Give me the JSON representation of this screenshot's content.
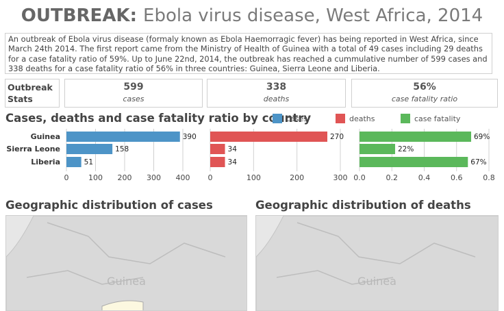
{
  "header": {
    "title_bold": "OUTBREAK:",
    "title_rest": "Ebola virus disease, West Africa, 2014"
  },
  "intro": "An outbreak of Ebola virus disease (formaly known as Ebola Haemorragic fever) has being reported in West Africa, since March 24th 2014. The first report came from the Ministry of Health of Guinea with a total of 49 cases including 29 deaths for a case fatality ratio of 59%. Up to June 22nd, 2014, the outbreak has reached a cummulative number of 599 cases and 338 deaths for a case fatality ratio of 56% in three countries: Guinea, Sierra Leone and Liberia.",
  "stats": {
    "label": "Outbreak Stats",
    "cases_value": "599",
    "cases_label": "cases",
    "deaths_value": "338",
    "deaths_label": "deaths",
    "cfr_value": "56%",
    "cfr_label": "case fatality ratio"
  },
  "chart_section_title": "Cases, deaths and case fatality ratio by country",
  "chart_data": {
    "type": "bar",
    "orientation": "horizontal",
    "categories": [
      "Guinea",
      "Sierra Leone",
      "Liberia"
    ],
    "legend_position": "top-right",
    "grid": true,
    "series": [
      {
        "name": "cases",
        "values": [
          390,
          158,
          51
        ],
        "value_labels": [
          "390",
          "158",
          "51"
        ],
        "color": "#4d94c7",
        "xlim": [
          0,
          400
        ],
        "ticks": [
          0,
          100,
          200,
          300,
          400
        ]
      },
      {
        "name": "deaths",
        "values": [
          270,
          34,
          34
        ],
        "value_labels": [
          "270",
          "34",
          "34"
        ],
        "color": "#e05555",
        "xlim": [
          0,
          300
        ],
        "ticks": [
          0,
          100,
          200,
          300
        ]
      },
      {
        "name": "case fatality",
        "values": [
          0.69,
          0.22,
          0.67
        ],
        "value_labels": [
          "69%",
          "22%",
          "67%"
        ],
        "color": "#5bb85b",
        "xlim": [
          0,
          0.8
        ],
        "ticks": [
          0.0,
          0.2,
          0.4,
          0.6,
          0.8
        ],
        "tick_labels": [
          "0.0",
          "0.2",
          "0.4",
          "0.6",
          "0.8"
        ]
      }
    ]
  },
  "maps": {
    "cases_title": "Geographic distribution of cases",
    "deaths_title": "Geographic distribution of deaths",
    "country_label_cases": "Guinea",
    "country_label_deaths": "Guinea",
    "land_color": "#d9d9d9",
    "highlight_color": "#fcf8e0"
  }
}
